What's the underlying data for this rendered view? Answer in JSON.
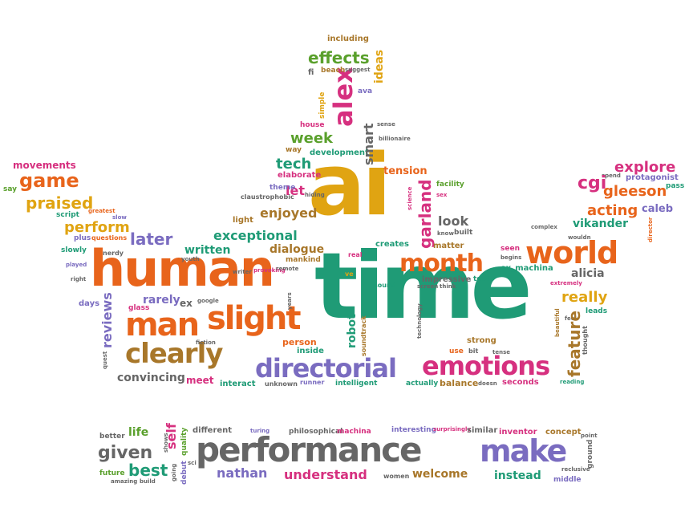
{
  "palette": {
    "orange": "#e8641b",
    "gold": "#e0a412",
    "green": "#1f9b76",
    "olive": "#5aa02c",
    "purple": "#7a6cc0",
    "magenta": "#d6307f",
    "gray": "#666666",
    "brown": "#a8772a",
    "light_green": "#66a61e"
  },
  "words": {
    "ai": "ai",
    "time": "time",
    "human": "human",
    "performance": "performance",
    "slight": "slight",
    "man": "man",
    "world": "world",
    "month": "month",
    "directorial": "directorial",
    "emotions": "emotions",
    "clearly": "clearly",
    "make": "make",
    "alex": "alex",
    "game": "game",
    "praised": "praised",
    "perform": "perform",
    "later": "later",
    "written": "written",
    "exceptional": "exceptional",
    "enjoyed": "enjoyed",
    "dialogue": "dialogue",
    "tech": "tech",
    "let": "let",
    "week": "week",
    "smart": "smart",
    "effects": "effects",
    "ideas": "ideas",
    "including": "including",
    "garland": "garland",
    "look": "look",
    "tension": "tension",
    "robot": "robot",
    "feature": "feature",
    "really": "really",
    "alicia": "alicia",
    "acting": "acting",
    "gleeson": "gleeson",
    "explore": "explore",
    "vikander": "vikander",
    "cgi": "cgi",
    "caleb": "caleb",
    "protagonist": "protagonist",
    "pass": "pass",
    "movements": "movements",
    "say": "say",
    "script": "script",
    "slowly": "slowly",
    "played": "played",
    "right": "right",
    "nerdy": "nerdy",
    "reviews": "reviews",
    "rarely": "rarely",
    "days": "days",
    "glass": "glass",
    "ex": "ex",
    "quest": "quest",
    "convincing": "convincing",
    "meet": "meet",
    "interact": "interact",
    "unknown": "unknown",
    "runner": "runner",
    "intelligent": "intelligent",
    "actually": "actually",
    "balance": "balance",
    "doesn": "doesn",
    "seconds": "seconds",
    "reading": "reading",
    "person": "person",
    "inside": "inside",
    "soundtrack": "soundtrack",
    "sound": "sound",
    "impressive": "impressive",
    "ex_machina": "ex_machina",
    "seen": "seen",
    "test": "test",
    "strong": "strong",
    "built": "built",
    "facility": "facility",
    "matter": "matter",
    "creates": "creates",
    "real": "real",
    "mankind": "mankind",
    "light": "light",
    "theme": "theme",
    "elaborate": "elaborate",
    "claustrophobic": "claustrophobic",
    "hiding": "hiding",
    "way": "way",
    "development": "development",
    "billionaire": "billionaire",
    "house": "house",
    "simple": "simple",
    "ava": "ava",
    "beach": "beach",
    "suggest": "suggest",
    "fi": "fi",
    "sense": "sense",
    "extremely": "extremely",
    "leads": "leads",
    "thought": "thought",
    "tense": "tense",
    "use": "use",
    "bit": "bit",
    "technology": "technology",
    "beautiful": "beautiful",
    "feel": "feel",
    "complex": "complex",
    "wouldn": "wouldn",
    "director": "director",
    "spend": "spend",
    "science": "science",
    "sex": "sex",
    "greatest": "greatest",
    "slow": "slow",
    "plus": "plus",
    "questions": "questions",
    "youth": "youth",
    "writer": "writer",
    "provoking": "provoking",
    "remote": "remote",
    "fiction": "fiction",
    "google": "google",
    "years": "years",
    "given": "given",
    "best": "best",
    "self": "self",
    "life": "life",
    "better": "better",
    "future": "future",
    "amazing": "amazing",
    "build": "build",
    "debut": "debut",
    "quality": "quality",
    "shows": "shows",
    "going": "going",
    "sci": "sci",
    "different": "different",
    "turing": "turing",
    "philosophical": "philosophical",
    "machina": "machina",
    "interesting": "interesting",
    "surprisingly": "surprisingly",
    "similar": "similar",
    "inventor": "inventor",
    "concept": "concept",
    "point": "point",
    "ground": "ground",
    "reclusive": "reclusive",
    "middle": "middle",
    "instead": "instead",
    "welcome": "welcome",
    "women": "women",
    "understand": "understand",
    "nathan": "nathan",
    "screen": "screen",
    "think": "think",
    "begins": "begins",
    "know": "know"
  }
}
